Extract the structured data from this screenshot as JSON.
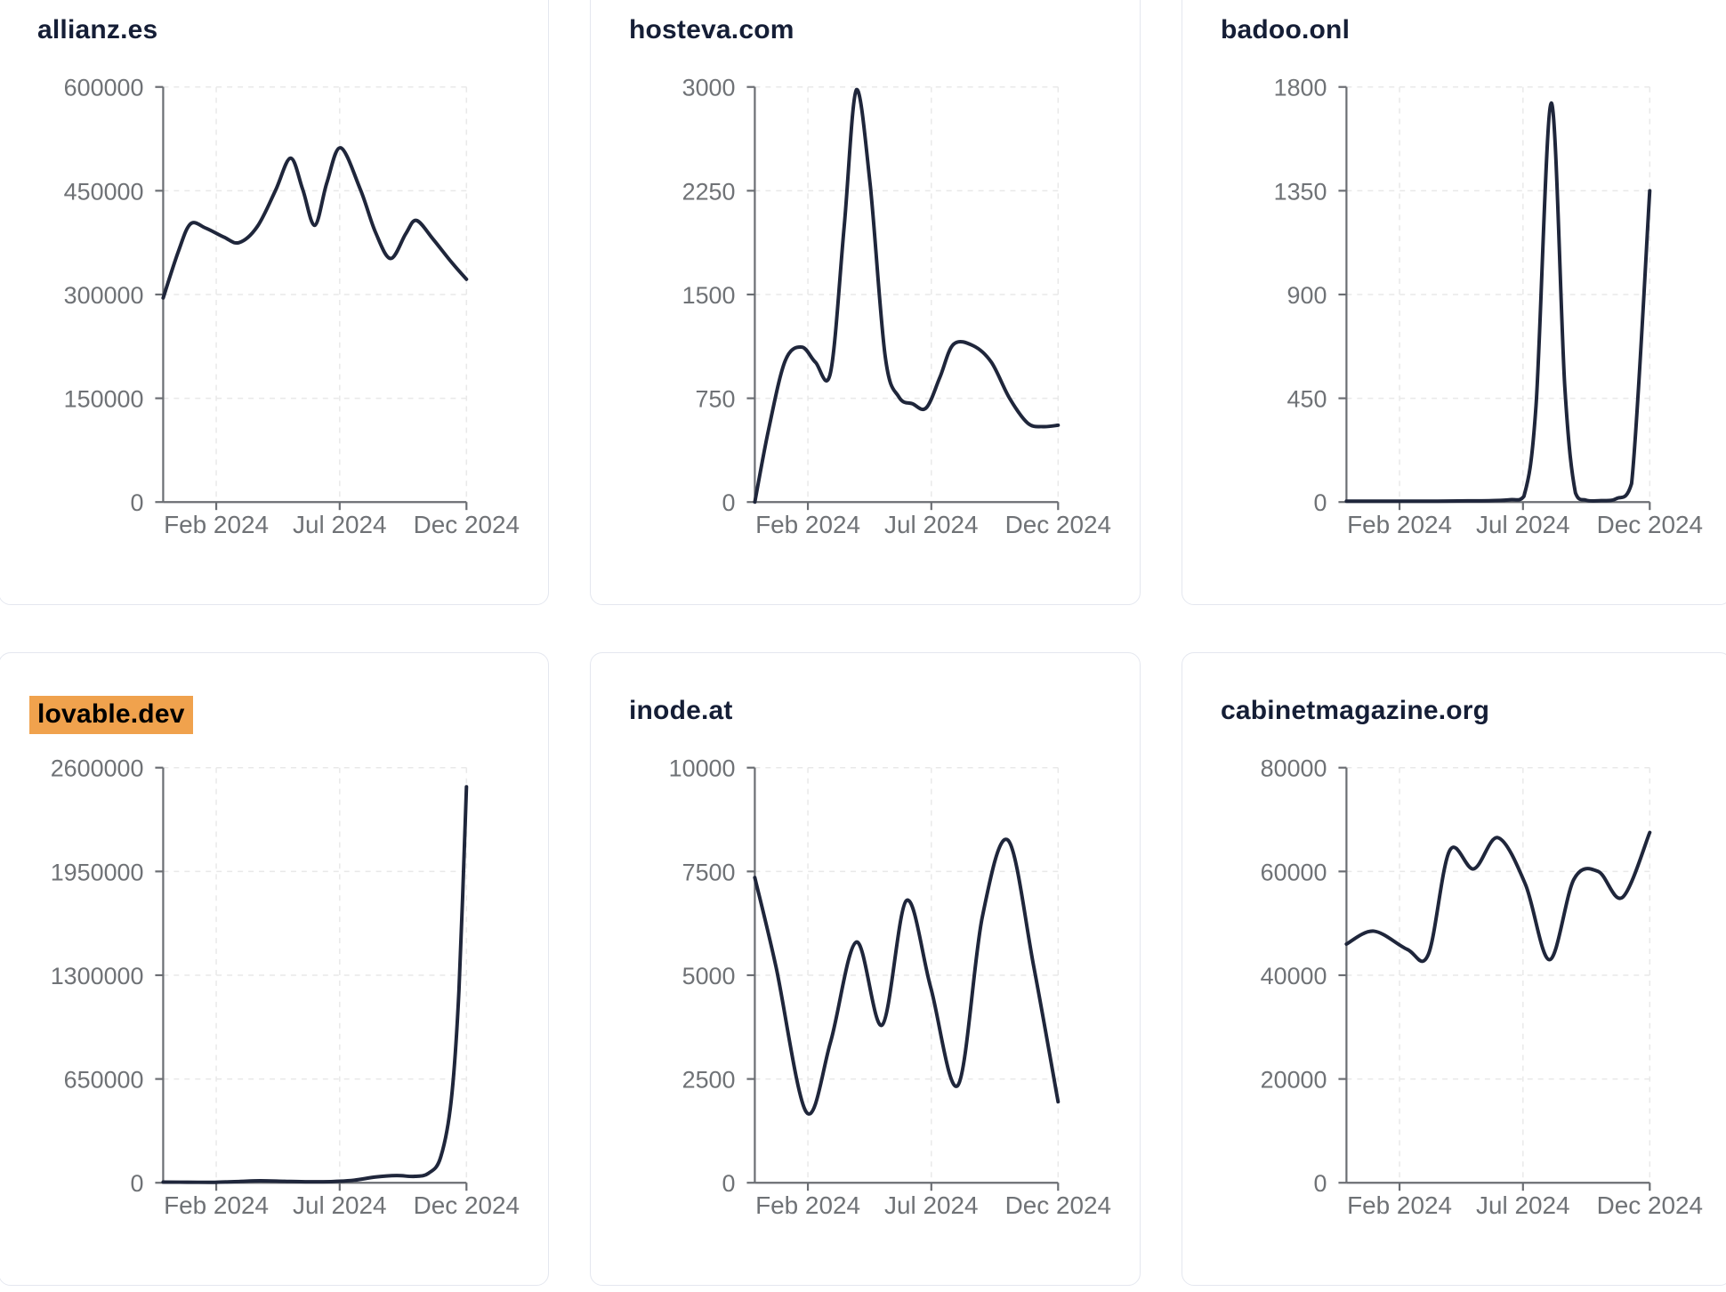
{
  "page": {
    "background": "#ffffff",
    "layout": "2x3 grid of domain traffic trend cards"
  },
  "styles": {
    "line_color": "#1f263b",
    "title_color": "#151e36",
    "axis_color": "#6b6e73",
    "tick_label_color": "#6f7276",
    "grid_color": "#e9e9e9",
    "card_border": "#e4e7ef",
    "card_background": "#ffffff",
    "highlight_bg": "#f0a24d",
    "highlight_text": "#000000"
  },
  "chart_data": [
    {
      "type": "line",
      "title": "allianz.es",
      "highlighted": false,
      "ylim": [
        0,
        600000
      ],
      "y_ticks": [
        0,
        150000,
        300000,
        450000,
        600000
      ],
      "x_ticks": [
        {
          "label": "Feb 2024",
          "t": 0.175
        },
        {
          "label": "Jul 2024",
          "t": 0.582
        },
        {
          "label": "Dec 2024",
          "t": 1.0
        }
      ],
      "grid": true,
      "points": [
        [
          0.0,
          295000
        ],
        [
          0.05,
          362000
        ],
        [
          0.09,
          402000
        ],
        [
          0.14,
          396000
        ],
        [
          0.2,
          383000
        ],
        [
          0.25,
          375000
        ],
        [
          0.31,
          398000
        ],
        [
          0.37,
          450000
        ],
        [
          0.42,
          497000
        ],
        [
          0.46,
          452000
        ],
        [
          0.5,
          400000
        ],
        [
          0.54,
          462000
        ],
        [
          0.585,
          512000
        ],
        [
          0.65,
          452000
        ],
        [
          0.7,
          390000
        ],
        [
          0.75,
          352000
        ],
        [
          0.8,
          388000
        ],
        [
          0.835,
          407000
        ],
        [
          0.89,
          380000
        ],
        [
          0.95,
          347000
        ],
        [
          1.0,
          322000
        ]
      ]
    },
    {
      "type": "line",
      "title": "hosteva.com",
      "highlighted": false,
      "ylim": [
        0,
        3000
      ],
      "y_ticks": [
        0,
        750,
        1500,
        2250,
        3000
      ],
      "x_ticks": [
        {
          "label": "Feb 2024",
          "t": 0.175
        },
        {
          "label": "Jul 2024",
          "t": 0.582
        },
        {
          "label": "Dec 2024",
          "t": 1.0
        }
      ],
      "grid": true,
      "points": [
        [
          0.0,
          0
        ],
        [
          0.045,
          520
        ],
        [
          0.1,
          1020
        ],
        [
          0.155,
          1120
        ],
        [
          0.2,
          1010
        ],
        [
          0.25,
          940
        ],
        [
          0.295,
          2000
        ],
        [
          0.335,
          2980
        ],
        [
          0.38,
          2300
        ],
        [
          0.43,
          1050
        ],
        [
          0.475,
          760
        ],
        [
          0.52,
          710
        ],
        [
          0.565,
          680
        ],
        [
          0.61,
          900
        ],
        [
          0.655,
          1140
        ],
        [
          0.72,
          1130
        ],
        [
          0.78,
          1010
        ],
        [
          0.84,
          750
        ],
        [
          0.9,
          570
        ],
        [
          0.95,
          545
        ],
        [
          1.0,
          555
        ]
      ]
    },
    {
      "type": "line",
      "title": "badoo.onl",
      "highlighted": false,
      "ylim": [
        0,
        1800
      ],
      "y_ticks": [
        0,
        450,
        900,
        1350,
        1800
      ],
      "x_ticks": [
        {
          "label": "Feb 2024",
          "t": 0.175
        },
        {
          "label": "Jul 2024",
          "t": 0.582
        },
        {
          "label": "Dec 2024",
          "t": 1.0
        }
      ],
      "grid": true,
      "points": [
        [
          0.0,
          4
        ],
        [
          0.1,
          4
        ],
        [
          0.2,
          4
        ],
        [
          0.3,
          4
        ],
        [
          0.4,
          5
        ],
        [
          0.48,
          6
        ],
        [
          0.54,
          10
        ],
        [
          0.585,
          25
        ],
        [
          0.625,
          420
        ],
        [
          0.675,
          1730
        ],
        [
          0.72,
          500
        ],
        [
          0.755,
          40
        ],
        [
          0.79,
          8
        ],
        [
          0.84,
          6
        ],
        [
          0.89,
          15
        ],
        [
          0.94,
          80
        ],
        [
          1.0,
          1350
        ]
      ]
    },
    {
      "type": "line",
      "title": "lovable.dev",
      "highlighted": true,
      "ylim": [
        0,
        2600000
      ],
      "y_ticks": [
        0,
        650000,
        1300000,
        1950000,
        2600000
      ],
      "x_ticks": [
        {
          "label": "Feb 2024",
          "t": 0.175
        },
        {
          "label": "Jul 2024",
          "t": 0.582
        },
        {
          "label": "Dec 2024",
          "t": 1.0
        }
      ],
      "grid": true,
      "points": [
        [
          0.0,
          4000
        ],
        [
          0.08,
          3500
        ],
        [
          0.17,
          3000
        ],
        [
          0.25,
          8000
        ],
        [
          0.32,
          12000
        ],
        [
          0.4,
          9000
        ],
        [
          0.48,
          6000
        ],
        [
          0.56,
          8000
        ],
        [
          0.63,
          16000
        ],
        [
          0.7,
          36000
        ],
        [
          0.77,
          45000
        ],
        [
          0.83,
          40000
        ],
        [
          0.875,
          60000
        ],
        [
          0.915,
          160000
        ],
        [
          0.95,
          520000
        ],
        [
          0.975,
          1200000
        ],
        [
          1.0,
          2480000
        ]
      ]
    },
    {
      "type": "line",
      "title": "inode.at",
      "highlighted": false,
      "ylim": [
        0,
        10000
      ],
      "y_ticks": [
        0,
        2500,
        5000,
        7500,
        10000
      ],
      "x_ticks": [
        {
          "label": "Feb 2024",
          "t": 0.175
        },
        {
          "label": "Jul 2024",
          "t": 0.582
        },
        {
          "label": "Dec 2024",
          "t": 1.0
        }
      ],
      "grid": true,
      "points": [
        [
          0.0,
          7350
        ],
        [
          0.07,
          5200
        ],
        [
          0.17,
          1700
        ],
        [
          0.25,
          3400
        ],
        [
          0.335,
          5800
        ],
        [
          0.42,
          3800
        ],
        [
          0.5,
          6800
        ],
        [
          0.58,
          4700
        ],
        [
          0.67,
          2350
        ],
        [
          0.75,
          6400
        ],
        [
          0.835,
          8250
        ],
        [
          0.92,
          5200
        ],
        [
          1.0,
          1950
        ]
      ]
    },
    {
      "type": "line",
      "title": "cabinetmagazine.org",
      "highlighted": false,
      "ylim": [
        0,
        80000
      ],
      "y_ticks": [
        0,
        20000,
        40000,
        60000,
        80000
      ],
      "x_ticks": [
        {
          "label": "Feb 2024",
          "t": 0.175
        },
        {
          "label": "Jul 2024",
          "t": 0.582
        },
        {
          "label": "Dec 2024",
          "t": 1.0
        }
      ],
      "grid": true,
      "points": [
        [
          0.0,
          46000
        ],
        [
          0.09,
          48500
        ],
        [
          0.2,
          45000
        ],
        [
          0.27,
          44000
        ],
        [
          0.34,
          64000
        ],
        [
          0.42,
          60500
        ],
        [
          0.5,
          66500
        ],
        [
          0.59,
          57500
        ],
        [
          0.67,
          43000
        ],
        [
          0.75,
          58500
        ],
        [
          0.83,
          60000
        ],
        [
          0.91,
          55000
        ],
        [
          1.0,
          67500
        ]
      ]
    }
  ]
}
